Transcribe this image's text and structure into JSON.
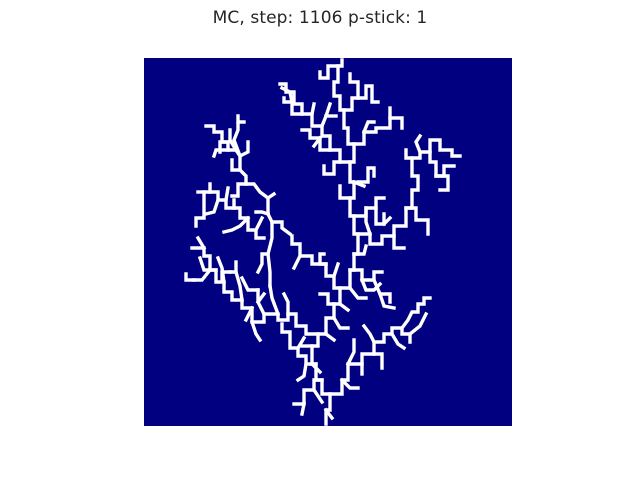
{
  "figure": {
    "title": "MC, step: 1106 p-stick: 1"
  },
  "lattice": {
    "background_color": "#000080",
    "particle_color": "#ffffff",
    "structure": "dendritic cluster of stuck particles (diffusion-limited aggregation)"
  }
}
